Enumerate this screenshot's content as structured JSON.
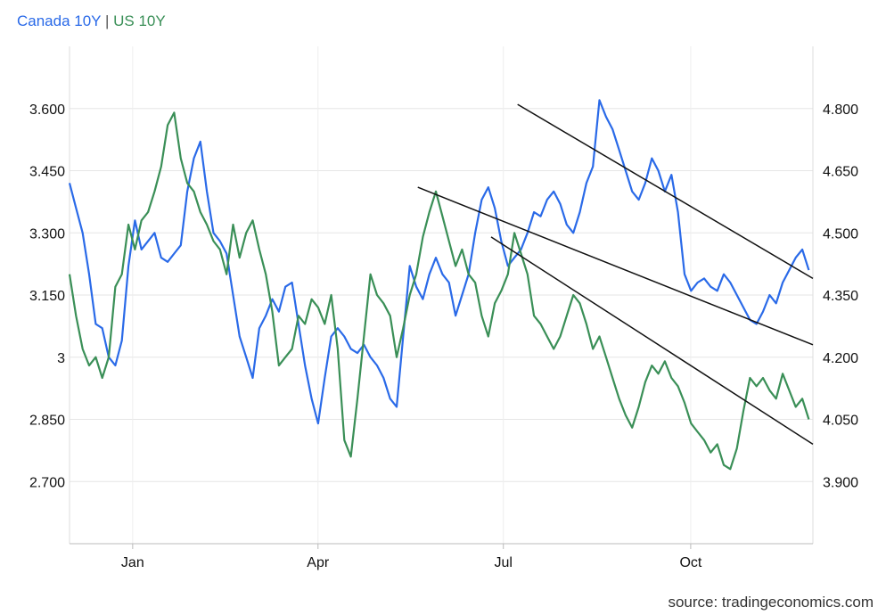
{
  "chart_data": {
    "type": "line",
    "title": "",
    "legend": {
      "placement": "top-left",
      "separator": "|"
    },
    "x_ticks": [
      "Jan",
      "Apr",
      "Jul",
      "Oct"
    ],
    "x_range": [
      "Dec 2023",
      "Nov 2024"
    ],
    "left_axis": {
      "ticks": [
        "2.700",
        "2.850",
        "3",
        "3.150",
        "3.300",
        "3.450",
        "3.600"
      ],
      "range": [
        2.55,
        3.75
      ]
    },
    "right_axis": {
      "ticks": [
        "3.900",
        "4.050",
        "4.200",
        "4.350",
        "4.500",
        "4.650",
        "4.800"
      ],
      "range": [
        3.75,
        4.95
      ]
    },
    "grid": true,
    "series": [
      {
        "name": "Canada 10Y",
        "color": "#2a6ae8",
        "axis": "left",
        "x_start": "2023-12-01",
        "x_end": "2024-11-28",
        "values": [
          3.42,
          3.36,
          3.3,
          3.2,
          3.08,
          3.07,
          3.0,
          2.98,
          3.04,
          3.22,
          3.33,
          3.26,
          3.28,
          3.3,
          3.24,
          3.23,
          3.25,
          3.27,
          3.4,
          3.48,
          3.52,
          3.4,
          3.3,
          3.28,
          3.25,
          3.15,
          3.05,
          3.0,
          2.95,
          3.07,
          3.1,
          3.14,
          3.11,
          3.17,
          3.18,
          3.08,
          2.98,
          2.9,
          2.84,
          2.95,
          3.05,
          3.07,
          3.05,
          3.02,
          3.01,
          3.03,
          3.0,
          2.98,
          2.95,
          2.9,
          2.88,
          3.05,
          3.22,
          3.17,
          3.14,
          3.2,
          3.24,
          3.2,
          3.18,
          3.1,
          3.15,
          3.2,
          3.3,
          3.38,
          3.41,
          3.36,
          3.28,
          3.22,
          3.24,
          3.26,
          3.3,
          3.35,
          3.34,
          3.38,
          3.4,
          3.37,
          3.32,
          3.3,
          3.35,
          3.42,
          3.46,
          3.62,
          3.58,
          3.55,
          3.5,
          3.45,
          3.4,
          3.38,
          3.42,
          3.48,
          3.45,
          3.4,
          3.44,
          3.35,
          3.2,
          3.16,
          3.18,
          3.19,
          3.17,
          3.16,
          3.2,
          3.18,
          3.15,
          3.12,
          3.09,
          3.08,
          3.11,
          3.15,
          3.13,
          3.18,
          3.21,
          3.24,
          3.26,
          3.21
        ]
      },
      {
        "name": "US 10Y",
        "color": "#3a8f57",
        "axis": "right",
        "x_start": "2023-12-01",
        "x_end": "2024-11-28",
        "values": [
          4.4,
          4.3,
          4.22,
          4.18,
          4.2,
          4.15,
          4.2,
          4.37,
          4.4,
          4.52,
          4.46,
          4.53,
          4.55,
          4.6,
          4.66,
          4.76,
          4.79,
          4.68,
          4.62,
          4.6,
          4.55,
          4.52,
          4.48,
          4.46,
          4.4,
          4.52,
          4.44,
          4.5,
          4.53,
          4.46,
          4.4,
          4.31,
          4.18,
          4.2,
          4.22,
          4.3,
          4.28,
          4.34,
          4.32,
          4.28,
          4.35,
          4.22,
          4.0,
          3.96,
          4.1,
          4.25,
          4.4,
          4.35,
          4.33,
          4.3,
          4.2,
          4.27,
          4.35,
          4.4,
          4.49,
          4.55,
          4.6,
          4.54,
          4.48,
          4.42,
          4.46,
          4.4,
          4.38,
          4.3,
          4.25,
          4.33,
          4.36,
          4.4,
          4.5,
          4.45,
          4.4,
          4.3,
          4.28,
          4.25,
          4.22,
          4.25,
          4.3,
          4.35,
          4.33,
          4.28,
          4.22,
          4.25,
          4.2,
          4.15,
          4.1,
          4.06,
          4.03,
          4.08,
          4.14,
          4.18,
          4.16,
          4.19,
          4.15,
          4.13,
          4.09,
          4.04,
          4.02,
          4.0,
          3.97,
          3.99,
          3.94,
          3.93,
          3.98,
          4.07,
          4.15,
          4.13,
          4.15,
          4.12,
          4.1,
          4.16,
          4.12,
          4.08,
          4.1,
          4.05
        ]
      }
    ],
    "trendlines": [
      {
        "series": "Canada 10Y",
        "axis": "left",
        "x": [
          "2024-07-08",
          "2024-11-30"
        ],
        "y": [
          3.61,
          3.19
        ]
      },
      {
        "series": "Canada 10Y",
        "axis": "left",
        "x": [
          "2024-05-20",
          "2024-11-30"
        ],
        "y": [
          3.41,
          3.03
        ]
      },
      {
        "series": "US 10Y",
        "axis": "right",
        "x": [
          "2024-06-25",
          "2024-11-30"
        ],
        "y": [
          4.49,
          3.99
        ]
      }
    ]
  },
  "legend_labels": {
    "canada": "Canada 10Y",
    "sep": "|",
    "us": "US 10Y"
  },
  "source": "source: tradingeconomics.com"
}
